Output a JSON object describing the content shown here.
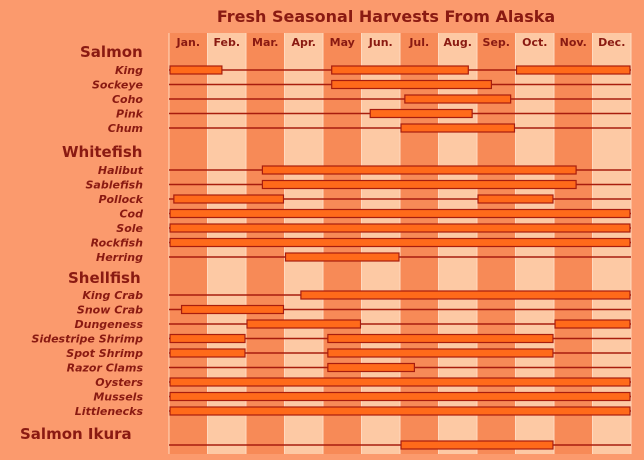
{
  "chart_data": {
    "type": "gantt",
    "title": "Fresh Seasonal Harvests From Alaska",
    "months": [
      "Jan.",
      "Feb.",
      "Mar.",
      "Apr.",
      "May",
      "Jun.",
      "Jul.",
      "Aug.",
      "Sep.",
      "Oct.",
      "Nov.",
      "Dec."
    ],
    "groups": [
      {
        "name": "Salmon",
        "items": [
          {
            "name": "King",
            "seasons": [
              [
                0,
                1.4
              ],
              [
                4.2,
                7.8
              ],
              [
                9.0,
                12.0
              ]
            ]
          },
          {
            "name": "Sockeye",
            "seasons": [
              [
                4.2,
                8.4
              ]
            ]
          },
          {
            "name": "Coho",
            "seasons": [
              [
                6.1,
                8.9
              ]
            ]
          },
          {
            "name": "Pink",
            "seasons": [
              [
                5.2,
                7.9
              ]
            ]
          },
          {
            "name": "Chum",
            "seasons": [
              [
                6.0,
                9.0
              ]
            ]
          }
        ]
      },
      {
        "name": "Whitefish",
        "items": [
          {
            "name": "Halibut",
            "seasons": [
              [
                2.4,
                10.6
              ]
            ]
          },
          {
            "name": "Sablefish",
            "seasons": [
              [
                2.4,
                10.6
              ]
            ]
          },
          {
            "name": "Pollock",
            "seasons": [
              [
                0.1,
                3.0
              ],
              [
                8.0,
                10.0
              ]
            ]
          },
          {
            "name": "Cod",
            "seasons": [
              [
                0,
                12.0
              ]
            ]
          },
          {
            "name": "Sole",
            "seasons": [
              [
                0,
                12.0
              ]
            ]
          },
          {
            "name": "Rockfish",
            "seasons": [
              [
                0,
                12.0
              ]
            ]
          },
          {
            "name": "Herring",
            "seasons": [
              [
                3.0,
                6.0
              ]
            ]
          }
        ]
      },
      {
        "name": "Shellfish",
        "items": [
          {
            "name": "King Crab",
            "seasons": [
              [
                3.4,
                12.0
              ]
            ]
          },
          {
            "name": "Snow Crab",
            "seasons": [
              [
                0.3,
                3.0
              ]
            ]
          },
          {
            "name": "Dungeness",
            "seasons": [
              [
                2.0,
                5.0
              ],
              [
                10.0,
                12.0
              ]
            ]
          },
          {
            "name": "Sidestripe Shrimp",
            "seasons": [
              [
                0,
                2.0
              ],
              [
                4.1,
                10.0
              ]
            ]
          },
          {
            "name": "Spot Shrimp",
            "seasons": [
              [
                0,
                2.0
              ],
              [
                4.1,
                10.0
              ]
            ]
          },
          {
            "name": "Razor Clams",
            "seasons": [
              [
                4.1,
                6.4
              ]
            ]
          },
          {
            "name": "Oysters",
            "seasons": [
              [
                0,
                12.0
              ]
            ]
          },
          {
            "name": "Mussels",
            "seasons": [
              [
                0,
                12.0
              ]
            ]
          },
          {
            "name": "Littlenecks",
            "seasons": [
              [
                0,
                12.0
              ]
            ]
          }
        ]
      },
      {
        "name": "Salmon Ikura",
        "items": [
          {
            "name": "",
            "seasons": [
              [
                6.0,
                10.0
              ]
            ]
          }
        ]
      }
    ]
  }
}
